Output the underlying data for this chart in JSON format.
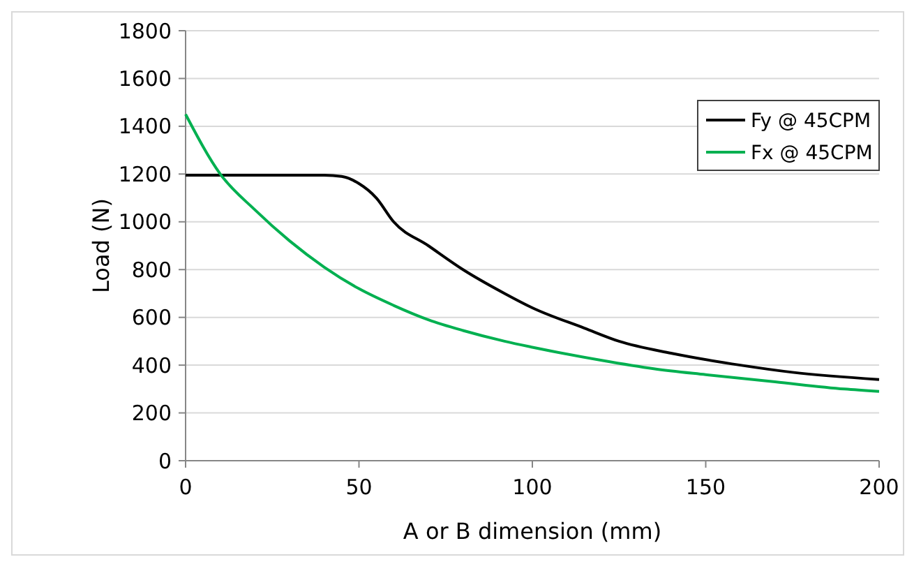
{
  "chart_data": {
    "type": "line",
    "xlabel": "A or B dimension (mm)",
    "ylabel": "Load (N)",
    "xlim": [
      0,
      200
    ],
    "xticks": [
      0,
      50,
      100,
      150,
      200
    ],
    "ylim": [
      0,
      1800
    ],
    "yticks": [
      0,
      200,
      400,
      600,
      800,
      1000,
      1200,
      1400,
      1600,
      1800
    ],
    "grid": "y",
    "legend": "top right",
    "marker": "none",
    "line_style": "solid",
    "series": [
      {
        "name": "Fy @ 45CPM",
        "color": "#000000",
        "x": [
          0,
          10,
          20,
          30,
          40,
          45,
          50,
          55,
          60,
          70,
          80,
          92,
          100,
          115,
          125,
          140,
          160,
          175,
          200
        ],
        "values": [
          1195,
          1195,
          1195,
          1195,
          1195,
          1190,
          1160,
          1100,
          1000,
          900,
          800,
          700,
          640,
          555,
          500,
          450,
          400,
          370,
          340
        ]
      },
      {
        "name": "Fx @ 45CPM",
        "color": "#00b050",
        "x": [
          0,
          10,
          20,
          30,
          40,
          50,
          60,
          70,
          80,
          92,
          100,
          120,
          135,
          150,
          170,
          190,
          200
        ],
        "values": [
          1450,
          1200,
          1050,
          920,
          810,
          720,
          650,
          590,
          545,
          500,
          475,
          420,
          385,
          360,
          330,
          300,
          290
        ]
      }
    ]
  }
}
